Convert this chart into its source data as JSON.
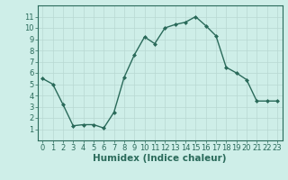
{
  "xlabel": "Humidex (Indice chaleur)",
  "x": [
    0,
    1,
    2,
    3,
    4,
    5,
    6,
    7,
    8,
    9,
    10,
    11,
    12,
    13,
    14,
    15,
    16,
    17,
    18,
    19,
    20,
    21,
    22,
    23
  ],
  "y": [
    5.5,
    5.0,
    3.2,
    1.3,
    1.4,
    1.4,
    1.1,
    2.5,
    5.6,
    7.6,
    9.2,
    8.6,
    10.0,
    10.3,
    10.5,
    11.0,
    10.2,
    9.3,
    6.5,
    6.0,
    5.4,
    3.5,
    3.5,
    3.5
  ],
  "ylim": [
    0,
    12
  ],
  "xlim": [
    -0.5,
    23.5
  ],
  "yticks": [
    1,
    2,
    3,
    4,
    5,
    6,
    7,
    8,
    9,
    10,
    11
  ],
  "xticks": [
    0,
    1,
    2,
    3,
    4,
    5,
    6,
    7,
    8,
    9,
    10,
    11,
    12,
    13,
    14,
    15,
    16,
    17,
    18,
    19,
    20,
    21,
    22,
    23
  ],
  "line_color": "#2a6a5a",
  "marker": "D",
  "marker_size": 2.0,
  "line_width": 1.0,
  "bg_color": "#ceeee8",
  "plot_bg_color": "#ceeee8",
  "grid_color": "#b8d8d2",
  "xlabel_fontsize": 7.5,
  "tick_fontsize": 6.0,
  "spine_color": "#2a6a5a"
}
